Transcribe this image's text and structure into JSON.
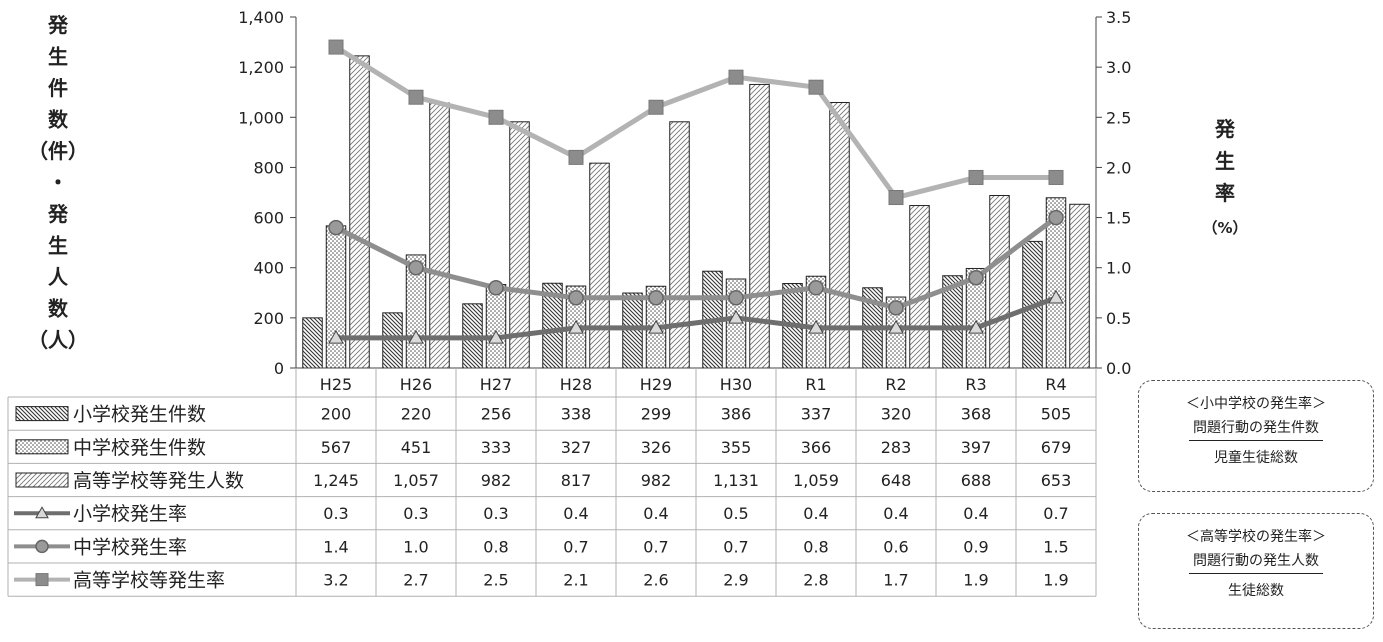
{
  "chart_data": {
    "type": "bar",
    "categories": [
      "H25",
      "H26",
      "H27",
      "H28",
      "H29",
      "H30",
      "R1",
      "R2",
      "R3",
      "R4"
    ],
    "left_axis": {
      "label_chars": [
        "発",
        "生",
        "件",
        "数",
        "（件）",
        "・",
        "発",
        "生",
        "人",
        "数",
        "（人）"
      ],
      "ylim": [
        0,
        1400
      ],
      "ticks": [
        "0",
        "200",
        "400",
        "600",
        "800",
        "1,000",
        "1,200",
        "1,400"
      ]
    },
    "right_axis": {
      "label_chars": [
        "発",
        "生",
        "率",
        "（%）"
      ],
      "ylim": [
        0,
        3.5
      ],
      "ticks": [
        "0.0",
        "0.5",
        "1.0",
        "1.5",
        "2.0",
        "2.5",
        "3.0",
        "3.5"
      ]
    },
    "series": [
      {
        "name": "小学校発生件数",
        "kind": "bar",
        "pattern": "diag",
        "values": [
          200,
          220,
          256,
          338,
          299,
          386,
          337,
          320,
          368,
          505
        ],
        "labels": [
          "200",
          "220",
          "256",
          "338",
          "299",
          "386",
          "337",
          "320",
          "368",
          "505"
        ]
      },
      {
        "name": "中学校発生件数",
        "kind": "bar",
        "pattern": "dots",
        "values": [
          567,
          451,
          333,
          327,
          326,
          355,
          366,
          283,
          397,
          679
        ],
        "labels": [
          "567",
          "451",
          "333",
          "327",
          "326",
          "355",
          "366",
          "283",
          "397",
          "679"
        ]
      },
      {
        "name": "高等学校等発生人数",
        "kind": "bar",
        "pattern": "hatch",
        "values": [
          1245,
          1057,
          982,
          817,
          982,
          1131,
          1059,
          648,
          688,
          653
        ],
        "labels": [
          "1,245",
          "1,057",
          "982",
          "817",
          "982",
          "1,131",
          "1,059",
          "648",
          "688",
          "653"
        ]
      },
      {
        "name": "小学校発生率",
        "kind": "line",
        "marker": "triangle",
        "color": "#6e6e6e",
        "values": [
          0.3,
          0.3,
          0.3,
          0.4,
          0.4,
          0.5,
          0.4,
          0.4,
          0.4,
          0.7
        ],
        "labels": [
          "0.3",
          "0.3",
          "0.3",
          "0.4",
          "0.4",
          "0.5",
          "0.4",
          "0.4",
          "0.4",
          "0.7"
        ]
      },
      {
        "name": "中学校発生率",
        "kind": "line",
        "marker": "circle",
        "color": "#8e8e8e",
        "values": [
          1.4,
          1.0,
          0.8,
          0.7,
          0.7,
          0.7,
          0.8,
          0.6,
          0.9,
          1.5
        ],
        "labels": [
          "1.4",
          "1.0",
          "0.8",
          "0.7",
          "0.7",
          "0.7",
          "0.8",
          "0.6",
          "0.9",
          "1.5"
        ]
      },
      {
        "name": "高等学校等発生率",
        "kind": "line",
        "marker": "square",
        "color": "#b3b3b3",
        "values": [
          3.2,
          2.7,
          2.5,
          2.1,
          2.6,
          2.9,
          2.8,
          1.7,
          1.9,
          1.9
        ],
        "labels": [
          "3.2",
          "2.7",
          "2.5",
          "2.1",
          "2.6",
          "2.9",
          "2.8",
          "1.7",
          "1.9",
          "1.9"
        ]
      }
    ]
  },
  "notes": [
    {
      "title": "＜小中学校の発生率＞",
      "numerator": "問題行動の発生件数",
      "denominator": "児童生徒総数"
    },
    {
      "title": "＜高等学校の発生率＞",
      "numerator": "問題行動の発生人数",
      "denominator": "生徒総数"
    }
  ]
}
